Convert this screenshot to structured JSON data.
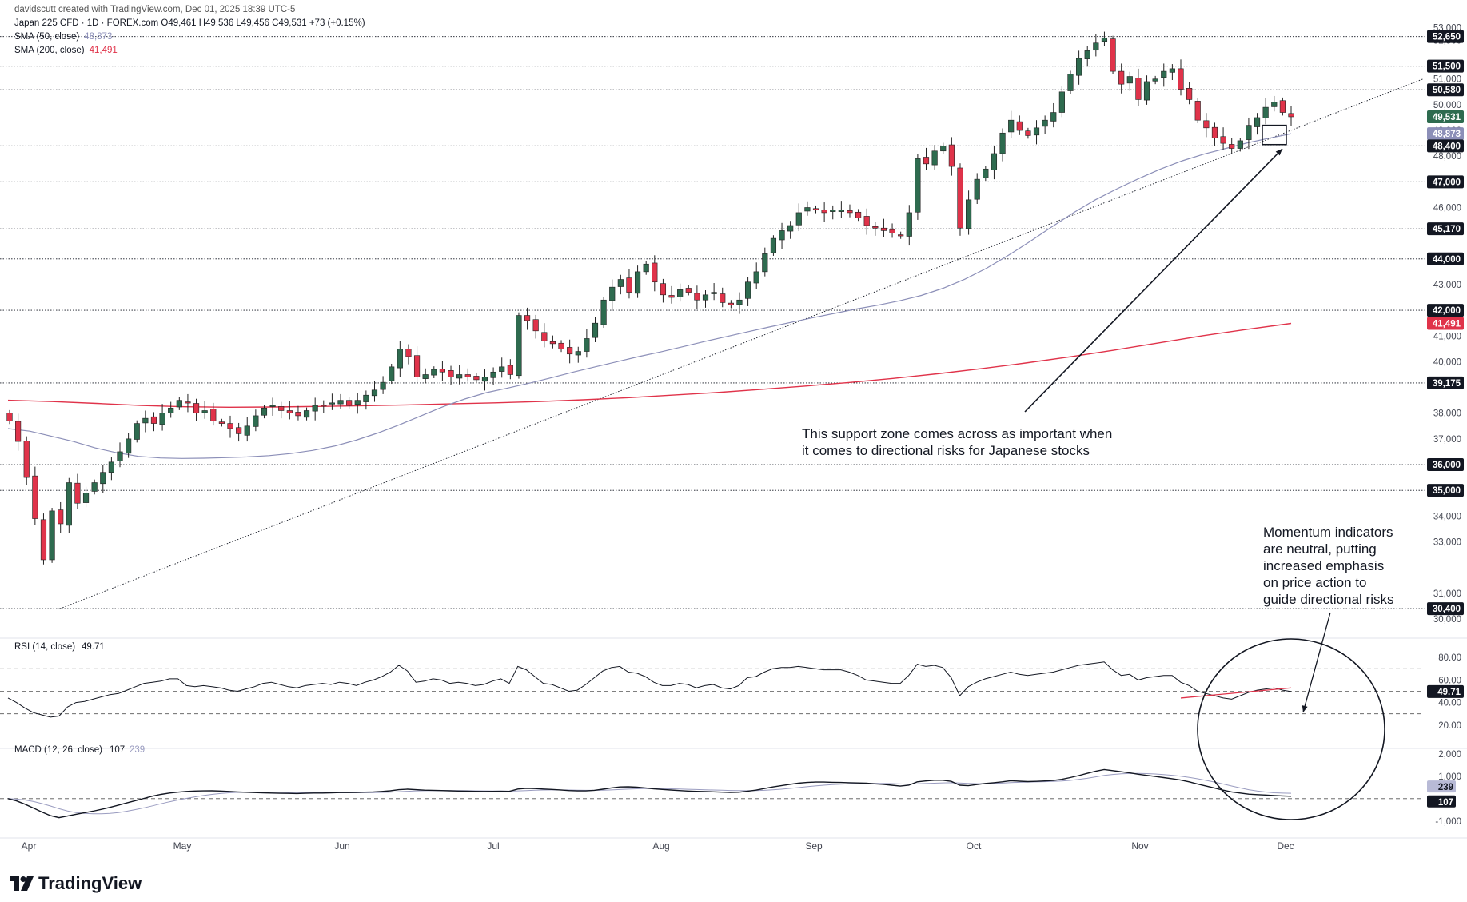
{
  "header": {
    "created_by": "davidscutt created with TradingView.com, Dec 01, 2025 18:39 UTC-5",
    "symbol_line": "Japan 225 CFD · 1D · FOREX.com  O49,461  H49,536  L49,456  C49,531  +73 (+0.15%)",
    "sma50_label": "SMA (50, close)",
    "sma50_value": "48,873",
    "sma200_label": "SMA (200, close)",
    "sma200_value": "41,491"
  },
  "colors": {
    "up": "#2e6b4f",
    "down": "#e0334a",
    "sma50": "#8c8fb8",
    "sma200": "#e0334a",
    "text": "#131722",
    "label_bg": "#131722"
  },
  "logo": "TradingView",
  "annotations": {
    "support": [
      "This support zone comes across as important when",
      "it comes to directional risks for Japanese stocks"
    ],
    "momentum": [
      "Momentum indicators",
      "are neutral, putting",
      "increased emphasis",
      "on price action to",
      "guide directional risks"
    ]
  },
  "chart_data": [
    {
      "type": "candlestick",
      "symbol": "Japan 225 CFD",
      "timeframe": "1D",
      "x_months": [
        "Apr",
        "May",
        "Jun",
        "Jul",
        "Aug",
        "Sep",
        "Oct",
        "Nov",
        "Dec"
      ],
      "y_ticks": [
        53000,
        52500,
        51000,
        50000,
        49000,
        48000,
        46000,
        44000,
        43000,
        41000,
        40000,
        38000,
        37000,
        34000,
        33000,
        31000,
        30000
      ],
      "ylim": [
        29500,
        53200
      ],
      "horizontal_levels": [
        52650,
        51500,
        50580,
        48400,
        47000,
        45170,
        44000,
        42000,
        39175,
        36000,
        35000,
        30400
      ],
      "price_labels": [
        {
          "value": 52650,
          "text": "52,650",
          "kind": "level"
        },
        {
          "value": 51500,
          "text": "51,500",
          "kind": "level"
        },
        {
          "value": 50580,
          "text": "50,580",
          "kind": "level"
        },
        {
          "value": 49531,
          "text": "49,531",
          "kind": "last"
        },
        {
          "value": 48873,
          "text": "48,873",
          "kind": "sma50"
        },
        {
          "value": 48400,
          "text": "48,400",
          "kind": "level"
        },
        {
          "value": 47000,
          "text": "47,000",
          "kind": "level"
        },
        {
          "value": 45170,
          "text": "45,170",
          "kind": "level"
        },
        {
          "value": 44000,
          "text": "44,000",
          "kind": "level"
        },
        {
          "value": 42000,
          "text": "42,000",
          "kind": "level"
        },
        {
          "value": 41491,
          "text": "41,491",
          "kind": "sma200"
        },
        {
          "value": 39175,
          "text": "39,175",
          "kind": "level"
        },
        {
          "value": 36000,
          "text": "36,000",
          "kind": "level"
        },
        {
          "value": 35000,
          "text": "35,000",
          "kind": "level"
        },
        {
          "value": 30400,
          "text": "30,400",
          "kind": "level"
        }
      ],
      "close_path": [
        37700,
        36900,
        35500,
        33900,
        32300,
        34200,
        33700,
        35300,
        34500,
        34900,
        35300,
        35700,
        36100,
        36500,
        37000,
        37600,
        37800,
        37600,
        38000,
        38200,
        38500,
        38400,
        38000,
        38100,
        37700,
        37600,
        37400,
        37200,
        37500,
        37900,
        38200,
        38300,
        38100,
        38000,
        37900,
        38100,
        38300,
        38300,
        38400,
        38500,
        38300,
        38500,
        38700,
        38900,
        39200,
        39800,
        40500,
        40200,
        39400,
        39500,
        39700,
        39600,
        39400,
        39500,
        39400,
        39300,
        39400,
        39600,
        39800,
        39500,
        41800,
        41600,
        41200,
        40800,
        40700,
        40500,
        40300,
        40400,
        40900,
        41500,
        42400,
        42900,
        43200,
        42700,
        43500,
        43800,
        43100,
        42600,
        42500,
        42800,
        42700,
        42400,
        42600,
        42700,
        42300,
        42200,
        42400,
        43100,
        43500,
        44200,
        44800,
        45100,
        45300,
        45800,
        46000,
        45900,
        45800,
        45900,
        45900,
        45800,
        45600,
        45300,
        45200,
        45100,
        45000,
        44900,
        45800,
        47900,
        47700,
        48200,
        48400,
        47600,
        45200,
        46300,
        47100,
        47500,
        48100,
        48900,
        49400,
        49000,
        48800,
        49100,
        49400,
        49700,
        50500,
        51200,
        51800,
        52100,
        52400,
        52600,
        51300,
        50800,
        51100,
        50200,
        50900,
        51000,
        51300,
        51400,
        50600,
        50200,
        49400,
        49100,
        48700,
        48500,
        48300,
        48600,
        49200,
        49500,
        49900,
        50100,
        49700,
        49531
      ],
      "sma50_path": [
        37400,
        37300,
        37100,
        36900,
        36650,
        36460,
        36320,
        36260,
        36240,
        36250,
        36270,
        36300,
        36350,
        36430,
        36550,
        36720,
        36950,
        37230,
        37550,
        37900,
        38250,
        38550,
        38800,
        38980,
        39170,
        39380,
        39600,
        39800,
        40000,
        40200,
        40380,
        40580,
        40780,
        40970,
        41160,
        41350,
        41530,
        41710,
        41880,
        42050,
        42200,
        42370,
        42580,
        42860,
        43210,
        43640,
        44140,
        44680,
        45250,
        45800,
        46300,
        46730,
        47130,
        47500,
        47820,
        48080,
        48300,
        48520,
        48700,
        48873
      ],
      "sma200_path": [
        38500,
        38450,
        38380,
        38300,
        38250,
        38230,
        38240,
        38260,
        38290,
        38320,
        38360,
        38400,
        38450,
        38520,
        38600,
        38700,
        38800,
        38920,
        39050,
        39190,
        39350,
        39530,
        39730,
        39950,
        40190,
        40450,
        40730,
        41010,
        41260,
        41491
      ],
      "trendline": [
        {
          "month": "Apr",
          "value": 30400
        },
        {
          "month": "Dec",
          "value": 51000
        }
      ],
      "last_close": 49531
    },
    {
      "type": "line",
      "title": "RSI (14, close)",
      "value": "49.71",
      "y_ticks": [
        80.0,
        60.0,
        40.0,
        20.0
      ],
      "ylim": [
        5,
        90
      ],
      "bands": [
        70,
        50,
        30
      ],
      "series": [
        {
          "values": [
            44,
            40,
            35,
            31,
            29,
            27,
            28,
            36,
            40,
            41,
            43,
            45,
            47,
            48,
            51,
            54,
            57,
            58,
            59,
            61,
            61,
            55,
            54,
            55,
            54,
            53,
            51,
            50,
            52,
            54,
            57,
            58,
            56,
            54,
            53,
            55,
            56,
            57,
            56,
            58,
            57,
            55,
            58,
            60,
            63,
            67,
            73,
            68,
            58,
            59,
            61,
            60,
            57,
            58,
            57,
            55,
            56,
            59,
            61,
            57,
            72,
            69,
            63,
            57,
            56,
            53,
            50,
            51,
            56,
            62,
            68,
            71,
            72,
            67,
            66,
            63,
            58,
            55,
            55,
            57,
            56,
            53,
            55,
            56,
            53,
            52,
            55,
            62,
            63,
            67,
            70,
            71,
            71,
            72,
            71,
            70,
            69,
            69,
            69,
            67,
            64,
            60,
            59,
            58,
            57,
            57,
            64,
            74,
            72,
            73,
            71,
            62,
            46,
            54,
            58,
            61,
            63,
            65,
            67,
            65,
            64,
            65,
            66,
            67,
            69,
            71,
            73,
            74,
            75,
            76,
            69,
            64,
            65,
            60,
            62,
            63,
            64,
            64,
            58,
            55,
            50,
            48,
            46,
            44,
            43,
            46,
            49,
            51,
            52,
            53,
            51,
            49.71
          ]
        }
      ],
      "overlay_line": [
        {
          "index": 138,
          "value": 44
        },
        {
          "index": 151,
          "value": 53
        }
      ]
    },
    {
      "type": "line",
      "title": "MACD (12, 26, close)",
      "values_shown": [
        "107",
        "239"
      ],
      "y_ticks": [
        "2,000",
        "1,000",
        "-1,000"
      ],
      "ylim": [
        -1400,
        2100
      ],
      "series": [
        {
          "name": "MACD",
          "values": [
            0,
            -100,
            -250,
            -420,
            -600,
            -760,
            -850,
            -780,
            -700,
            -630,
            -560,
            -480,
            -390,
            -290,
            -190,
            -90,
            10,
            110,
            190,
            250,
            290,
            320,
            340,
            345,
            350,
            340,
            320,
            300,
            285,
            270,
            260,
            250,
            240,
            235,
            230,
            240,
            250,
            250,
            260,
            270,
            270,
            280,
            290,
            300,
            320,
            350,
            400,
            420,
            400,
            380,
            370,
            360,
            350,
            340,
            335,
            325,
            320,
            325,
            330,
            325,
            430,
            460,
            450,
            430,
            410,
            390,
            360,
            345,
            345,
            370,
            420,
            480,
            520,
            530,
            510,
            480,
            440,
            410,
            385,
            360,
            340,
            325,
            315,
            305,
            290,
            280,
            285,
            330,
            380,
            450,
            520,
            580,
            640,
            690,
            720,
            740,
            740,
            730,
            720,
            710,
            700,
            690,
            660,
            640,
            600,
            560,
            600,
            750,
            790,
            820,
            820,
            770,
            600,
            580,
            630,
            680,
            710,
            750,
            800,
            780,
            760,
            770,
            790,
            810,
            860,
            940,
            1030,
            1130,
            1220,
            1300,
            1250,
            1200,
            1150,
            1090,
            1040,
            990,
            940,
            890,
            830,
            750,
            650,
            560,
            470,
            380,
            300,
            250,
            200,
            180,
            160,
            140,
            120,
            107
          ]
        },
        {
          "name": "Signal",
          "values": [
            0,
            -20,
            -60,
            -130,
            -220,
            -330,
            -450,
            -550,
            -620,
            -660,
            -680,
            -680,
            -660,
            -620,
            -560,
            -490,
            -410,
            -320,
            -230,
            -140,
            -60,
            10,
            80,
            140,
            190,
            230,
            260,
            280,
            290,
            295,
            295,
            290,
            285,
            280,
            275,
            270,
            265,
            263,
            262,
            263,
            264,
            266,
            268,
            272,
            280,
            290,
            310,
            330,
            345,
            355,
            360,
            360,
            360,
            358,
            355,
            350,
            345,
            340,
            338,
            335,
            345,
            360,
            375,
            385,
            390,
            390,
            385,
            378,
            372,
            371,
            378,
            390,
            408,
            425,
            438,
            446,
            448,
            445,
            438,
            428,
            418,
            407,
            396,
            386,
            375,
            366,
            358,
            355,
            360,
            372,
            393,
            422,
            456,
            494,
            531,
            567,
            600,
            627,
            647,
            662,
            673,
            680,
            682,
            679,
            671,
            658,
            648,
            660,
            675,
            690,
            705,
            712,
            696,
            679,
            669,
            670,
            678,
            692,
            714,
            728,
            738,
            746,
            756,
            767,
            786,
            815,
            857,
            908,
            970,
            1036,
            1080,
            1107,
            1121,
            1125,
            1117,
            1100,
            1075,
            1043,
            1000,
            948,
            886,
            815,
            738,
            654,
            565,
            480,
            400,
            340,
            295,
            262,
            245,
            239
          ]
        }
      ]
    }
  ]
}
